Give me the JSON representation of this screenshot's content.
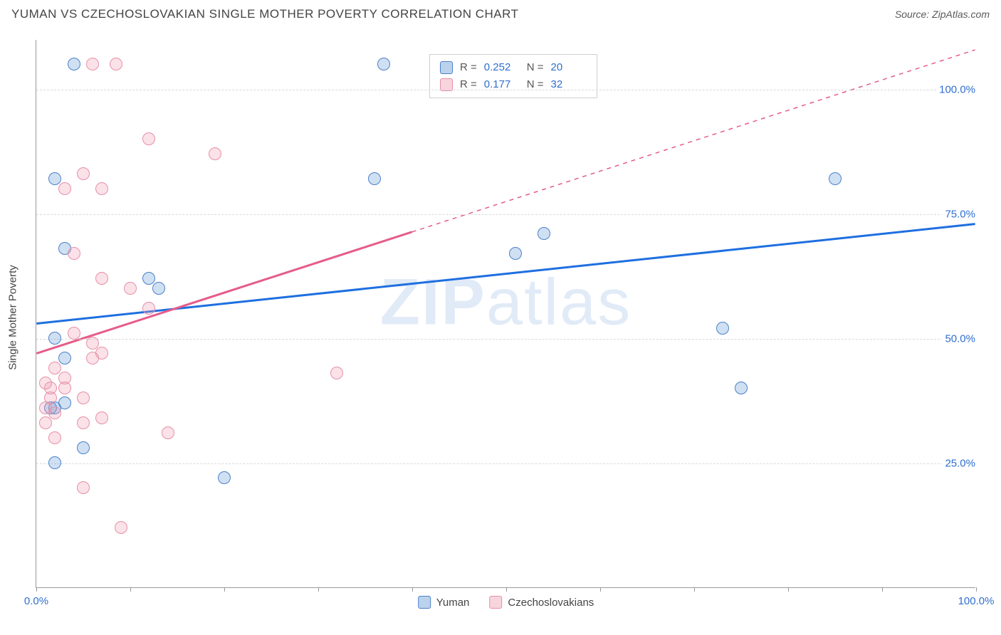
{
  "title": "YUMAN VS CZECHOSLOVAKIAN SINGLE MOTHER POVERTY CORRELATION CHART",
  "source": "Source: ZipAtlas.com",
  "watermark_a": "ZIP",
  "watermark_b": "atlas",
  "chart": {
    "type": "scatter",
    "background_color": "#ffffff",
    "grid_color": "#d9d9d9",
    "axis_color": "#999999",
    "label_color": "#2f6fd0",
    "label_fontsize": 15,
    "yaxis_title": "Single Mother Poverty",
    "xlim": [
      0,
      100
    ],
    "ylim": [
      0,
      110
    ],
    "yticks": [
      25,
      50,
      75,
      100
    ],
    "ytick_labels": [
      "25.0%",
      "50.0%",
      "75.0%",
      "100.0%"
    ],
    "xticks": [
      0,
      10,
      20,
      30,
      40,
      50,
      60,
      70,
      80,
      90,
      100
    ],
    "xaxis_labels": [
      {
        "pos": 0,
        "text": "0.0%"
      },
      {
        "pos": 100,
        "text": "100.0%"
      }
    ],
    "series": [
      {
        "name": "Yuman",
        "marker_color_fill": "rgba(120,165,220,0.35)",
        "marker_color_stroke": "#4a80c9",
        "trend_color": "#1e6fe0",
        "trend_y_start": 53,
        "trend_y_end": 73,
        "dashed_after_x": null,
        "points": [
          [
            4,
            105
          ],
          [
            2,
            82
          ],
          [
            3,
            68
          ],
          [
            12,
            62
          ],
          [
            13,
            60
          ],
          [
            2,
            50
          ],
          [
            3,
            46
          ],
          [
            2,
            36
          ],
          [
            1.5,
            36
          ],
          [
            5,
            28
          ],
          [
            2,
            25
          ],
          [
            20,
            22
          ],
          [
            37,
            105
          ],
          [
            36,
            82
          ],
          [
            51,
            67
          ],
          [
            54,
            71
          ],
          [
            73,
            52
          ],
          [
            75,
            40
          ],
          [
            85,
            82
          ],
          [
            3,
            37
          ]
        ]
      },
      {
        "name": "Czechoslovakians",
        "marker_color_fill": "rgba(240,160,180,0.30)",
        "marker_color_stroke": "#e78fa8",
        "trend_color": "#e65c88",
        "trend_y_start": 47,
        "trend_y_end": 108,
        "dashed_after_x": 40,
        "points": [
          [
            6,
            105
          ],
          [
            8.5,
            105
          ],
          [
            12,
            90
          ],
          [
            19,
            87
          ],
          [
            5,
            83
          ],
          [
            3,
            80
          ],
          [
            7,
            80
          ],
          [
            4,
            67
          ],
          [
            7,
            62
          ],
          [
            10,
            60
          ],
          [
            12,
            56
          ],
          [
            4,
            51
          ],
          [
            6,
            49
          ],
          [
            7,
            47
          ],
          [
            2,
            44
          ],
          [
            3,
            42
          ],
          [
            6,
            46
          ],
          [
            32,
            43
          ],
          [
            1.5,
            38
          ],
          [
            5,
            38
          ],
          [
            3,
            40
          ],
          [
            1,
            36
          ],
          [
            2,
            35
          ],
          [
            7,
            34
          ],
          [
            5,
            33
          ],
          [
            1,
            33
          ],
          [
            14,
            31
          ],
          [
            2,
            30
          ],
          [
            5,
            20
          ],
          [
            9,
            12
          ],
          [
            1.5,
            40
          ],
          [
            1,
            41
          ]
        ]
      }
    ],
    "legend_top": [
      {
        "swatch": "blue",
        "r_label": "R =",
        "r_value": "0.252",
        "n_label": "N =",
        "n_value": "20"
      },
      {
        "swatch": "pink",
        "r_label": "R =",
        "r_value": "0.177",
        "n_label": "N =",
        "n_value": "32"
      }
    ],
    "legend_bottom": [
      {
        "swatch": "blue",
        "label": "Yuman"
      },
      {
        "swatch": "pink",
        "label": "Czechoslovakians"
      }
    ]
  }
}
